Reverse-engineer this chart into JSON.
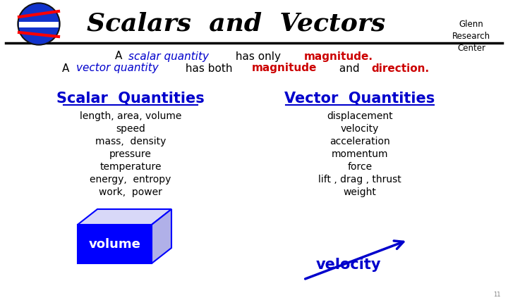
{
  "title": "Scalars  and  Vectors",
  "scalar_title": "Scalar  Quantities",
  "scalar_items": [
    "length, area, volume",
    "speed",
    "mass,  density",
    "pressure",
    "temperature",
    "energy,  entropy",
    "work,  power"
  ],
  "vector_title": "Vector  Quantities",
  "vector_items": [
    "displacement",
    "velocity",
    "acceleration",
    "momentum",
    "force",
    "lift , drag , thrust",
    "weight"
  ],
  "volume_label": "volume",
  "velocity_label": "velocity",
  "glenn_text": "Glenn\nResearch\nCenter",
  "bg_color": "#ffffff",
  "blue_color": "#0000cc",
  "red_color": "#cc0000",
  "black_color": "#000000",
  "title_fontsize": 26,
  "subtitle_fontsize": 11,
  "section_title_fontsize": 15,
  "item_fontsize": 10,
  "volume_fontsize": 13,
  "velocity_fontsize": 15,
  "subtitle_line1": [
    {
      "text": "A ",
      "color": "#000000",
      "bold": false,
      "italic": false
    },
    {
      "text": "scalar quantity",
      "color": "#0000cc",
      "bold": false,
      "italic": true
    },
    {
      "text": " has only  ",
      "color": "#000000",
      "bold": false,
      "italic": false
    },
    {
      "text": "magnitude.",
      "color": "#cc0000",
      "bold": true,
      "italic": false
    }
  ],
  "subtitle_line2": [
    {
      "text": "A ",
      "color": "#000000",
      "bold": false,
      "italic": false
    },
    {
      "text": "vector quantity",
      "color": "#0000cc",
      "bold": false,
      "italic": true
    },
    {
      "text": " has both ",
      "color": "#000000",
      "bold": false,
      "italic": false
    },
    {
      "text": "magnitude",
      "color": "#cc0000",
      "bold": true,
      "italic": false
    },
    {
      "text": " and ",
      "color": "#000000",
      "bold": false,
      "italic": false
    },
    {
      "text": "direction.",
      "color": "#cc0000",
      "bold": true,
      "italic": false
    }
  ]
}
